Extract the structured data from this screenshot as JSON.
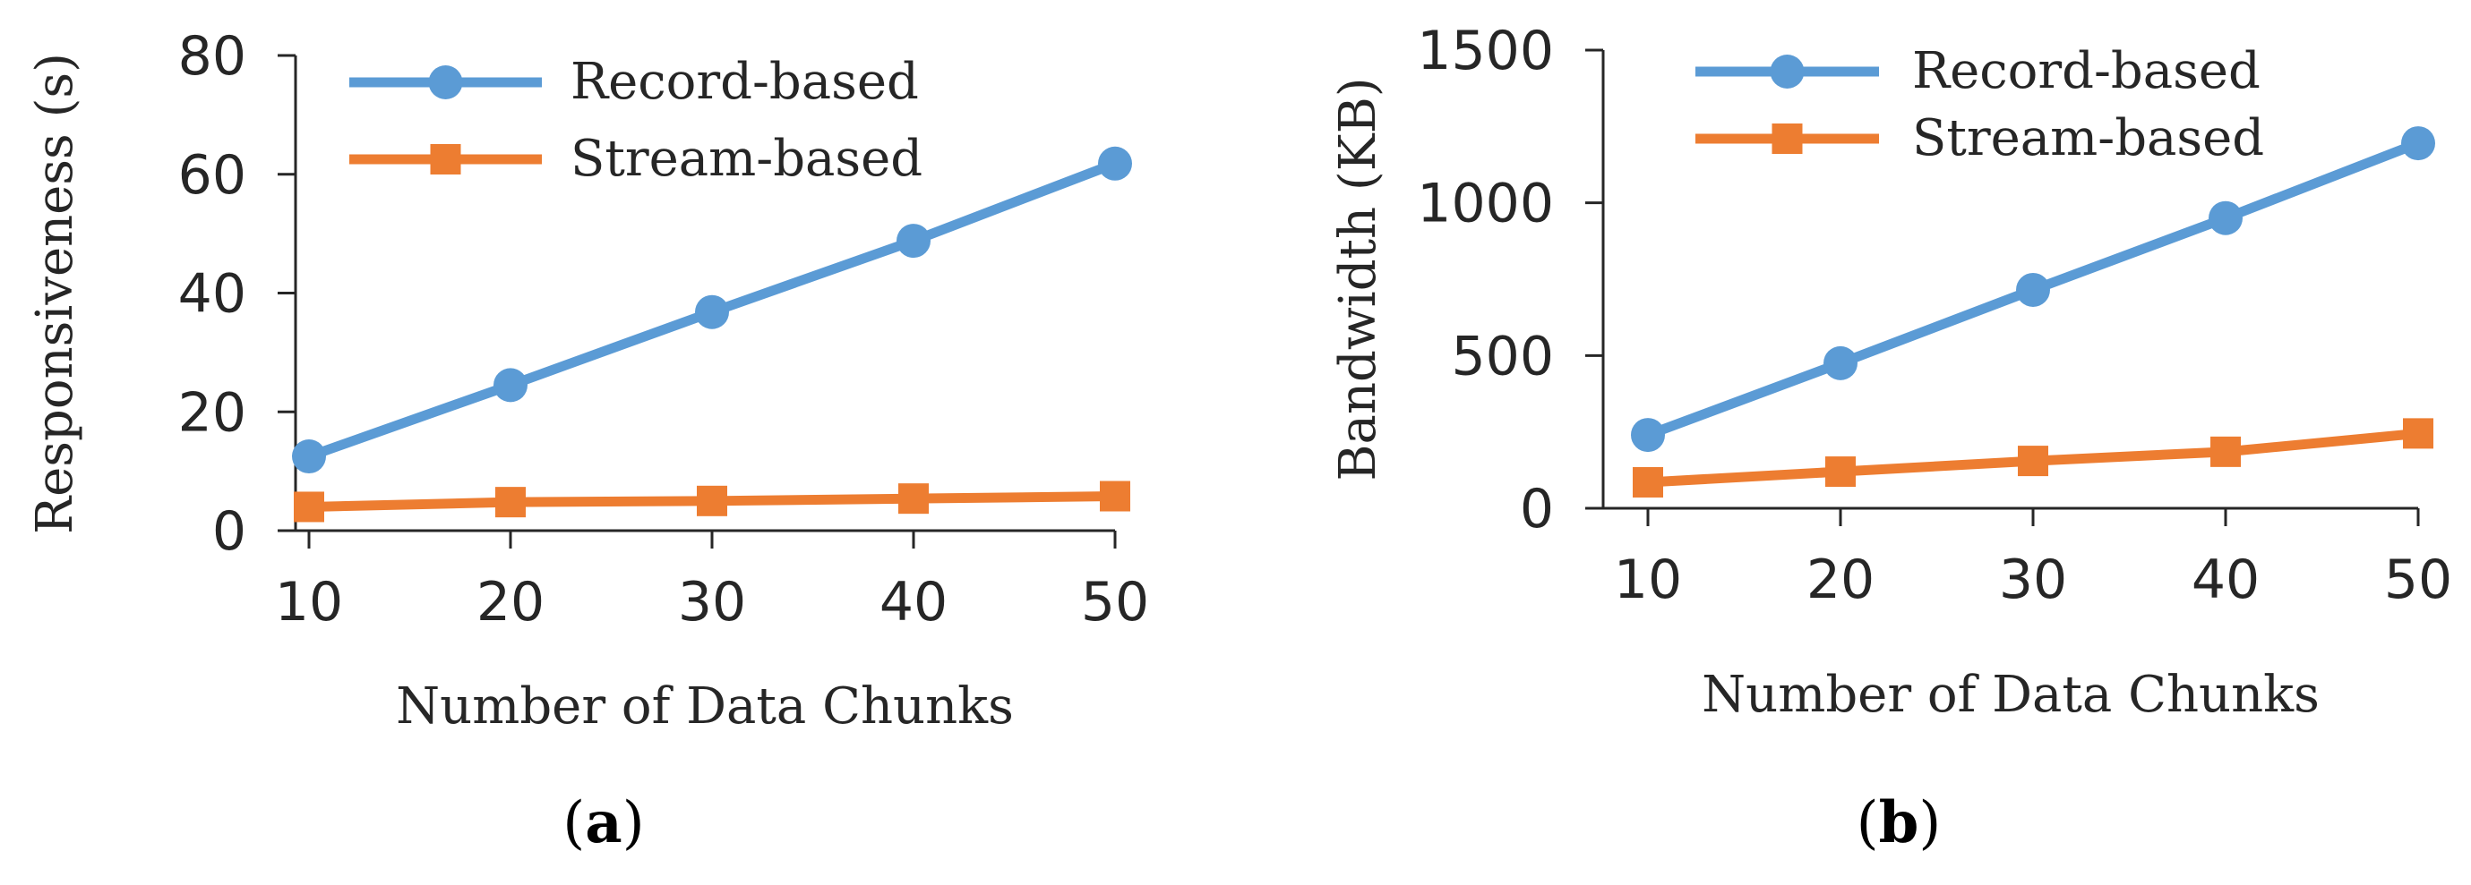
{
  "chart_data": [
    {
      "type": "line",
      "panel_label": "a",
      "xlabel": "Number of Data Chunks",
      "ylabel": "Responsiveness (s)",
      "x": [
        10,
        20,
        30,
        40,
        50
      ],
      "xticks": [
        "10",
        "20",
        "30",
        "40",
        "50"
      ],
      "ylim": [
        0,
        80
      ],
      "yticks": [
        "0",
        "20",
        "40",
        "60",
        "80"
      ],
      "legend": "top-left",
      "grid": false,
      "series": [
        {
          "name": "Record-based",
          "marker": "circle",
          "color": "#5B9BD5",
          "values": [
            12.5,
            24.5,
            36.8,
            48.8,
            61.8
          ]
        },
        {
          "name": "Stream-based",
          "marker": "square",
          "color": "#ED7D31",
          "values": [
            4.0,
            4.8,
            5.0,
            5.4,
            5.8
          ]
        }
      ]
    },
    {
      "type": "line",
      "panel_label": "b",
      "xlabel": "Number of Data Chunks",
      "ylabel": "Bandwidth (KB)",
      "x": [
        10,
        20,
        30,
        40,
        50
      ],
      "xticks": [
        "10",
        "20",
        "30",
        "40",
        "50"
      ],
      "ylim": [
        0,
        1500
      ],
      "yticks": [
        "0",
        "500",
        "1000",
        "1500"
      ],
      "legend": "top-left",
      "grid": false,
      "series": [
        {
          "name": "Record-based",
          "marker": "circle",
          "color": "#5B9BD5",
          "values": [
            240,
            475,
            715,
            950,
            1195
          ]
        },
        {
          "name": "Stream-based",
          "marker": "square",
          "color": "#ED7D31",
          "values": [
            85,
            120,
            155,
            185,
            245
          ]
        }
      ]
    }
  ]
}
